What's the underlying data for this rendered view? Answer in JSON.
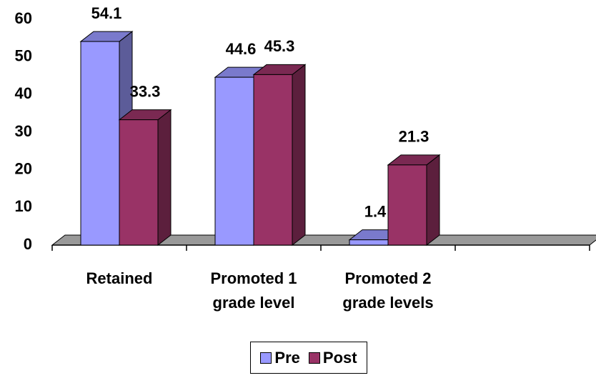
{
  "chart_data": {
    "type": "bar3d",
    "categories": [
      "Retained",
      "Promoted 1 grade level",
      "Promoted 2 grade levels",
      null
    ],
    "series": [
      {
        "name": "Pre",
        "color": "#9999ff",
        "values": [
          54.1,
          44.6,
          1.4,
          null
        ]
      },
      {
        "name": "Post",
        "color": "#993366",
        "values": [
          33.3,
          45.3,
          21.3,
          null
        ]
      }
    ],
    "ylim": [
      0,
      60
    ],
    "yticks": [
      0,
      10,
      20,
      30,
      40,
      50,
      60
    ],
    "legend": "bottom"
  }
}
